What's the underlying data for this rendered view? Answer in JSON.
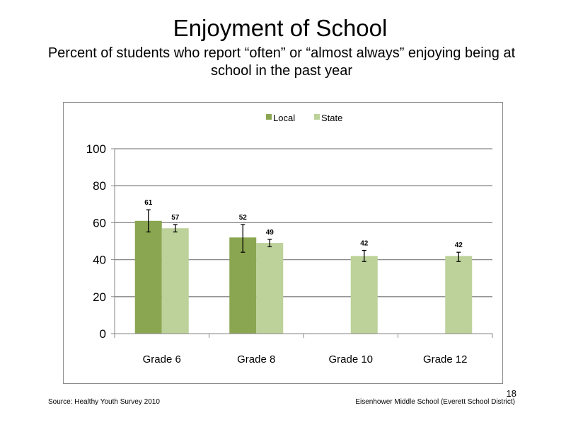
{
  "slide": {
    "title": "Enjoyment of School",
    "subtitle": "Percent of students who report “often” or “almost always” enjoying being at school in the past year",
    "source": "Source: Healthy Youth Survey 2010",
    "school": "Eisenhower Middle  School (Everett School District)",
    "page_number": "18"
  },
  "chart_data": {
    "type": "bar",
    "categories": [
      "Grade 6",
      "Grade 8",
      "Grade 10",
      "Grade 12"
    ],
    "ylim": [
      0,
      100
    ],
    "yticks": [
      0,
      20,
      40,
      60,
      80,
      100
    ],
    "grid": true,
    "legend_position": "top",
    "series": [
      {
        "name": "Local",
        "color": "#8aa650",
        "values": [
          61,
          52,
          null,
          null
        ],
        "error_low": [
          55,
          44,
          null,
          null
        ],
        "error_high": [
          67,
          59,
          null,
          null
        ]
      },
      {
        "name": "State",
        "color": "#bcd29a",
        "values": [
          57,
          49,
          42,
          42
        ],
        "error_low": [
          55,
          47,
          39,
          39
        ],
        "error_high": [
          59,
          51,
          45,
          44
        ]
      }
    ]
  }
}
